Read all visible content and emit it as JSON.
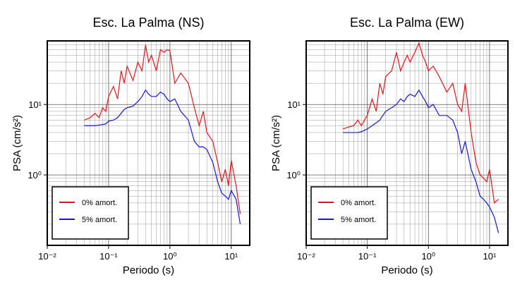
{
  "chart_data": [
    {
      "type": "line",
      "title": "Esc. La Palma (NS)",
      "xlabel": "Periodo (s)",
      "ylabel": "PSA (cm/s²)",
      "xscale": "log",
      "yscale": "log",
      "grid": true,
      "legend": "lower left",
      "xlim": [
        0.01,
        20
      ],
      "ylim": [
        0.1,
        80
      ],
      "xticks": [
        {
          "value": 0.01,
          "label": "10⁻²"
        },
        {
          "value": 0.1,
          "label": "10⁻¹"
        },
        {
          "value": 1,
          "label": "10⁰"
        },
        {
          "value": 10,
          "label": "10¹"
        }
      ],
      "yticks": [
        {
          "value": 1,
          "label": "10⁰"
        },
        {
          "value": 10,
          "label": "10¹"
        }
      ],
      "x": [
        0.04,
        0.05,
        0.06,
        0.07,
        0.08,
        0.09,
        0.1,
        0.12,
        0.14,
        0.16,
        0.18,
        0.2,
        0.25,
        0.3,
        0.35,
        0.4,
        0.45,
        0.5,
        0.6,
        0.7,
        0.8,
        0.9,
        1.0,
        1.2,
        1.5,
        2,
        2.5,
        3,
        3.5,
        4,
        5,
        6,
        7,
        8,
        9,
        10,
        12,
        14
      ],
      "series": [
        {
          "name": "0% amort.",
          "color": "#e8141c",
          "values": [
            6,
            6.5,
            7.5,
            6.5,
            9,
            8,
            13,
            18,
            12,
            30,
            20,
            35,
            22,
            40,
            30,
            70,
            40,
            50,
            30,
            60,
            55,
            60,
            58,
            20,
            28,
            20,
            9,
            5,
            8,
            4,
            3,
            1.5,
            0.8,
            1.2,
            0.7,
            1.6,
            0.7,
            0.28
          ]
        },
        {
          "name": "5% amort.",
          "color": "#1414e8",
          "values": [
            5,
            5,
            5,
            5.1,
            5.2,
            5.3,
            5.8,
            6,
            6.5,
            7.5,
            8.5,
            9,
            9.5,
            11,
            13,
            16,
            14,
            13,
            13,
            15,
            14,
            12,
            11,
            12,
            8,
            6,
            3,
            2.5,
            2.5,
            2.3,
            1.5,
            0.8,
            0.55,
            0.5,
            0.45,
            0.6,
            0.45,
            0.2
          ]
        }
      ]
    },
    {
      "type": "line",
      "title": "Esc. La Palma (EW)",
      "xlabel": "Periodo (s)",
      "ylabel": "PSA (cm/s²)",
      "xscale": "log",
      "yscale": "log",
      "grid": true,
      "legend": "lower left",
      "xlim": [
        0.01,
        20
      ],
      "ylim": [
        0.1,
        80
      ],
      "xticks": [
        {
          "value": 0.01,
          "label": "10⁻²"
        },
        {
          "value": 0.1,
          "label": "10⁻¹"
        },
        {
          "value": 1,
          "label": "10⁰"
        },
        {
          "value": 10,
          "label": "10¹"
        }
      ],
      "yticks": [
        {
          "value": 1,
          "label": "10⁰"
        },
        {
          "value": 10,
          "label": "10¹"
        }
      ],
      "x": [
        0.04,
        0.05,
        0.06,
        0.07,
        0.08,
        0.09,
        0.1,
        0.12,
        0.14,
        0.16,
        0.18,
        0.2,
        0.25,
        0.3,
        0.35,
        0.4,
        0.45,
        0.5,
        0.6,
        0.7,
        0.8,
        0.9,
        1.0,
        1.2,
        1.5,
        2,
        2.5,
        3,
        3.5,
        4,
        5,
        6,
        7,
        8,
        9,
        10,
        12,
        14
      ],
      "series": [
        {
          "name": "0% amort.",
          "color": "#e8141c",
          "values": [
            4.5,
            4.8,
            5,
            6,
            5,
            6,
            7,
            12,
            8,
            20,
            14,
            25,
            30,
            55,
            30,
            40,
            50,
            40,
            55,
            75,
            50,
            40,
            30,
            35,
            25,
            15,
            20,
            10,
            8,
            20,
            4,
            1.5,
            1.0,
            0.9,
            0.8,
            1.2,
            0.4,
            0.45
          ]
        },
        {
          "name": "5% amort.",
          "color": "#1414e8",
          "values": [
            4,
            4,
            4,
            4,
            4.1,
            4.3,
            4.5,
            5,
            5.5,
            6,
            7,
            8,
            9,
            10,
            12,
            11,
            13,
            14,
            13,
            16,
            13,
            11,
            9,
            10,
            7,
            7,
            6,
            4,
            2,
            3,
            1.2,
            0.8,
            0.5,
            0.45,
            0.4,
            0.35,
            0.25,
            0.15
          ]
        }
      ]
    }
  ]
}
